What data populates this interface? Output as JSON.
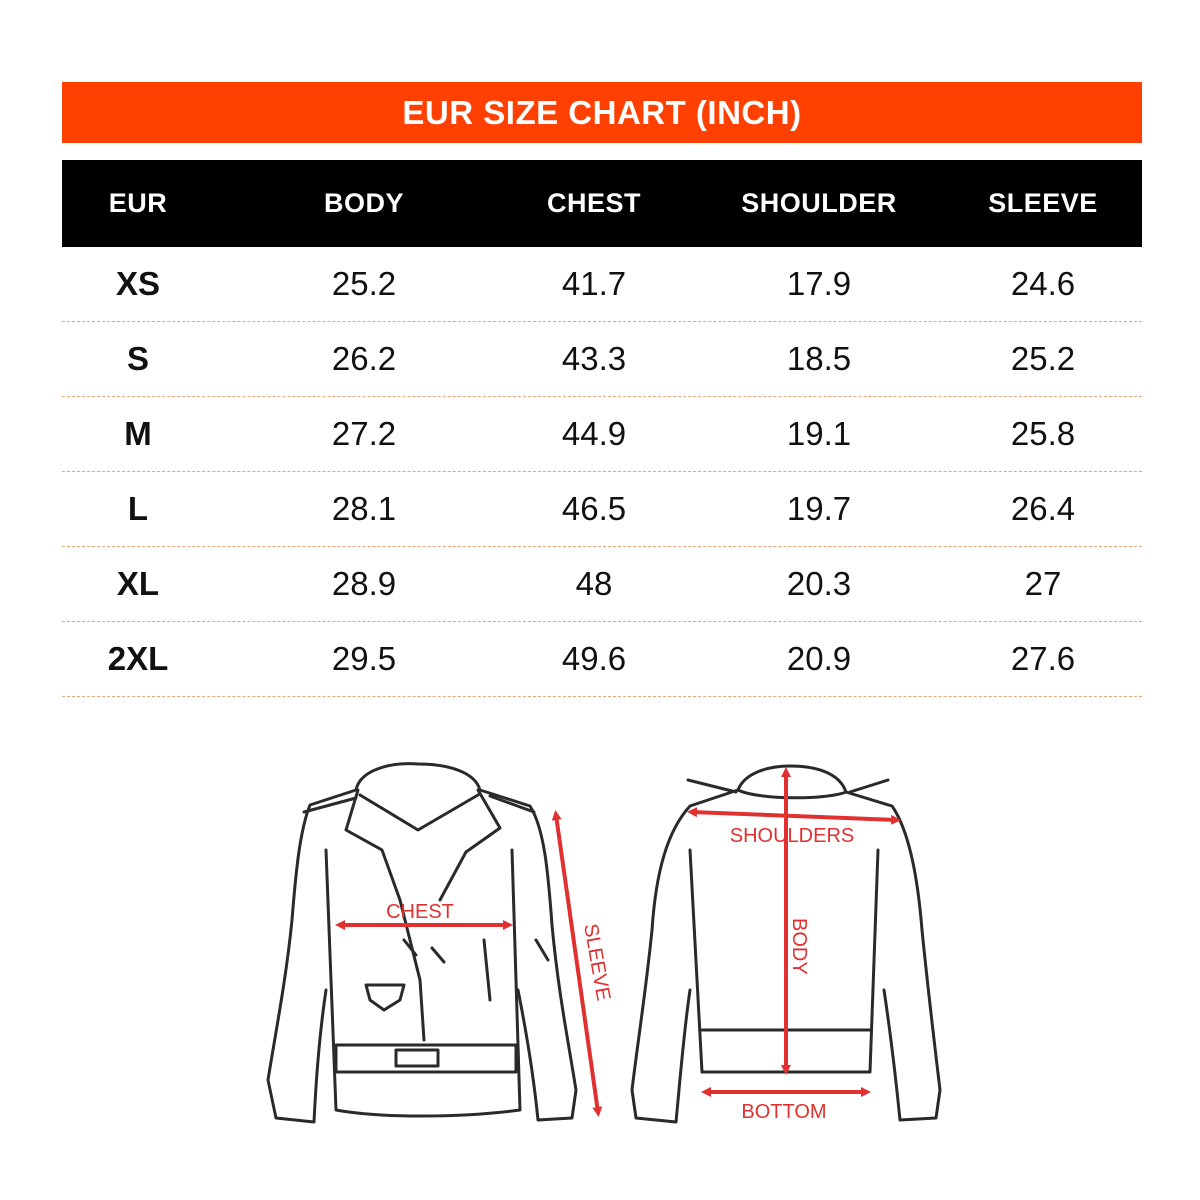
{
  "banner": {
    "title": "EUR SIZE CHART (INCH)"
  },
  "table": {
    "headers": [
      "EUR",
      "BODY",
      "CHEST",
      "SHOULDER",
      "SLEEVE"
    ],
    "rows": [
      [
        "XS",
        "25.2",
        "41.7",
        "17.9",
        "24.6"
      ],
      [
        "S",
        "26.2",
        "43.3",
        "18.5",
        "25.2"
      ],
      [
        "M",
        "27.2",
        "44.9",
        "19.1",
        "25.8"
      ],
      [
        "L",
        "28.1",
        "46.5",
        "19.7",
        "26.4"
      ],
      [
        "XL",
        "28.9",
        "48",
        "20.3",
        "27"
      ],
      [
        "2XL",
        "29.5",
        "49.6",
        "20.9",
        "27.6"
      ]
    ]
  },
  "diagram": {
    "labels": {
      "chest": "CHEST",
      "sleeve": "SLEEVE",
      "shoulders": "SHOULDERS",
      "body": "BODY",
      "bottom": "BOTTOM"
    }
  },
  "colors": {
    "accent": "#ff4000",
    "header_bg": "#000000",
    "measure": "#e03030"
  }
}
